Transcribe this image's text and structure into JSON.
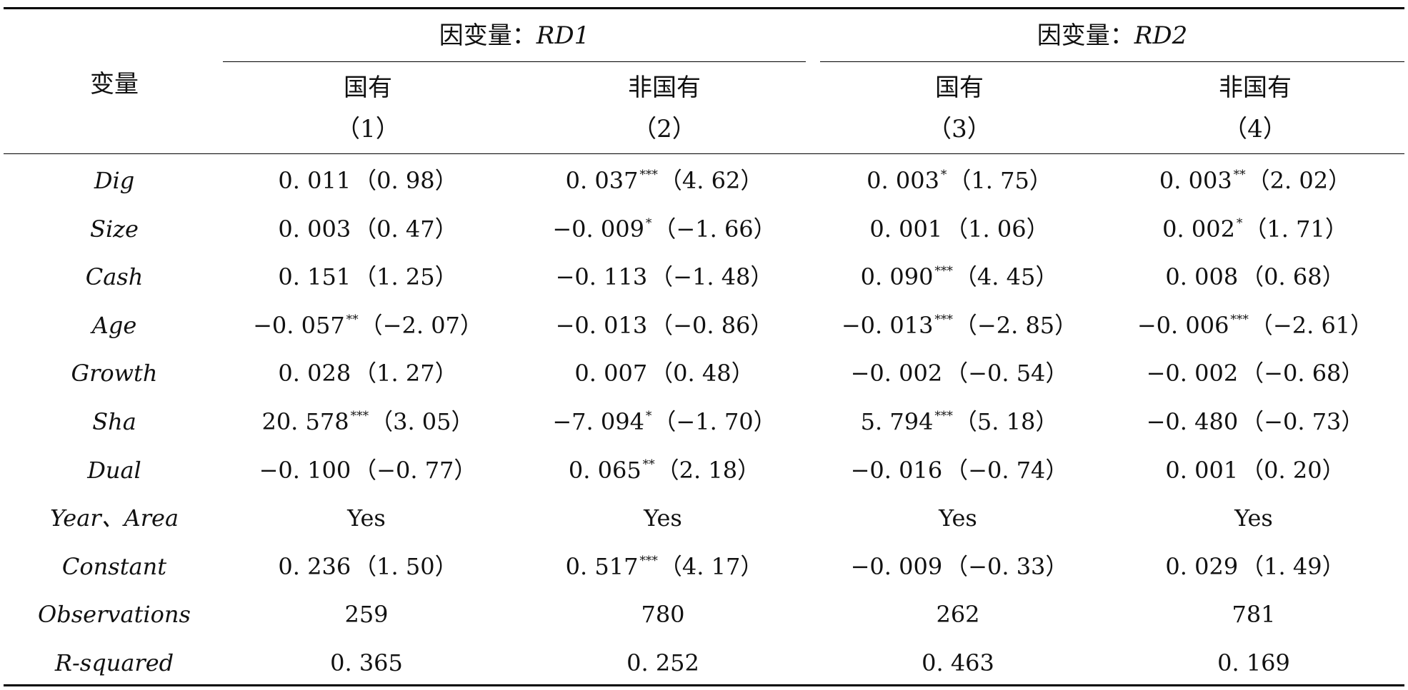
{
  "table": {
    "stub_header": "变量",
    "groups": [
      {
        "prefix": "因变量：",
        "var": "RD1"
      },
      {
        "prefix": "因变量：",
        "var": "RD2"
      }
    ],
    "columns": [
      {
        "type": "国有",
        "num": "（1）"
      },
      {
        "type": "非国有",
        "num": "（2）"
      },
      {
        "type": "国有",
        "num": "（3）"
      },
      {
        "type": "非国有",
        "num": "（4）"
      }
    ],
    "rows": [
      {
        "label": "Dig",
        "cells": [
          {
            "coef": "0. 011",
            "stars": "",
            "t": "（0. 98）"
          },
          {
            "coef": "0. 037",
            "stars": "***",
            "t": "（4. 62）"
          },
          {
            "coef": "0. 003",
            "stars": "*",
            "t": "（1. 75）"
          },
          {
            "coef": "0. 003",
            "stars": "**",
            "t": "（2. 02）"
          }
        ]
      },
      {
        "label": "Size",
        "cells": [
          {
            "coef": "0. 003",
            "stars": "",
            "t": "（0. 47）"
          },
          {
            "coef": "−0. 009",
            "stars": "*",
            "t": "（−1. 66）"
          },
          {
            "coef": "0. 001",
            "stars": "",
            "t": "（1. 06）"
          },
          {
            "coef": "0. 002",
            "stars": "*",
            "t": "（1. 71）"
          }
        ]
      },
      {
        "label": "Cash",
        "cells": [
          {
            "coef": "0. 151",
            "stars": "",
            "t": "（1. 25）"
          },
          {
            "coef": "−0. 113",
            "stars": "",
            "t": "（−1. 48）"
          },
          {
            "coef": "0. 090",
            "stars": "***",
            "t": "（4. 45）"
          },
          {
            "coef": "0. 008",
            "stars": "",
            "t": "（0. 68）"
          }
        ]
      },
      {
        "label": "Age",
        "cells": [
          {
            "coef": "−0. 057",
            "stars": "**",
            "t": "（−2. 07）"
          },
          {
            "coef": "−0. 013",
            "stars": "",
            "t": "（−0. 86）"
          },
          {
            "coef": "−0. 013",
            "stars": "***",
            "t": "（−2. 85）"
          },
          {
            "coef": "−0. 006",
            "stars": "***",
            "t": "（−2. 61）"
          }
        ]
      },
      {
        "label": "Growth",
        "cells": [
          {
            "coef": "0. 028",
            "stars": "",
            "t": "（1. 27）"
          },
          {
            "coef": "0. 007",
            "stars": "",
            "t": "（0. 48）"
          },
          {
            "coef": "−0. 002",
            "stars": "",
            "t": "（−0. 54）"
          },
          {
            "coef": "−0. 002",
            "stars": "",
            "t": "（−0. 68）"
          }
        ]
      },
      {
        "label": "Sha",
        "cells": [
          {
            "coef": "20. 578",
            "stars": "***",
            "t": "（3. 05）"
          },
          {
            "coef": "−7. 094",
            "stars": "*",
            "t": "（−1. 70）"
          },
          {
            "coef": "5. 794",
            "stars": "***",
            "t": "（5. 18）"
          },
          {
            "coef": "−0. 480",
            "stars": "",
            "t": "（−0. 73）"
          }
        ]
      },
      {
        "label": "Dual",
        "cells": [
          {
            "coef": "−0. 100",
            "stars": "",
            "t": "（−0. 77）"
          },
          {
            "coef": "0. 065",
            "stars": "**",
            "t": "（2. 18）"
          },
          {
            "coef": "−0. 016",
            "stars": "",
            "t": "（−0. 74）"
          },
          {
            "coef": "0. 001",
            "stars": "",
            "t": "（0. 20）"
          }
        ]
      },
      {
        "label": "Year、Area",
        "cells": [
          {
            "coef": "Yes",
            "stars": "",
            "t": ""
          },
          {
            "coef": "Yes",
            "stars": "",
            "t": ""
          },
          {
            "coef": "Yes",
            "stars": "",
            "t": ""
          },
          {
            "coef": "Yes",
            "stars": "",
            "t": ""
          }
        ]
      },
      {
        "label": "Constant",
        "cells": [
          {
            "coef": "0. 236",
            "stars": "",
            "t": "（1. 50）"
          },
          {
            "coef": "0. 517",
            "stars": "***",
            "t": "（4. 17）"
          },
          {
            "coef": "−0. 009",
            "stars": "",
            "t": "（−0. 33）"
          },
          {
            "coef": "0. 029",
            "stars": "",
            "t": "（1. 49）"
          }
        ]
      },
      {
        "label": "Observations",
        "cells": [
          {
            "coef": "259",
            "stars": "",
            "t": ""
          },
          {
            "coef": "780",
            "stars": "",
            "t": ""
          },
          {
            "coef": "262",
            "stars": "",
            "t": ""
          },
          {
            "coef": "781",
            "stars": "",
            "t": ""
          }
        ]
      },
      {
        "label": "R-squared",
        "cells": [
          {
            "coef": "0. 365",
            "stars": "",
            "t": ""
          },
          {
            "coef": "0. 252",
            "stars": "",
            "t": ""
          },
          {
            "coef": "0. 463",
            "stars": "",
            "t": ""
          },
          {
            "coef": "0. 169",
            "stars": "",
            "t": ""
          }
        ]
      }
    ]
  }
}
